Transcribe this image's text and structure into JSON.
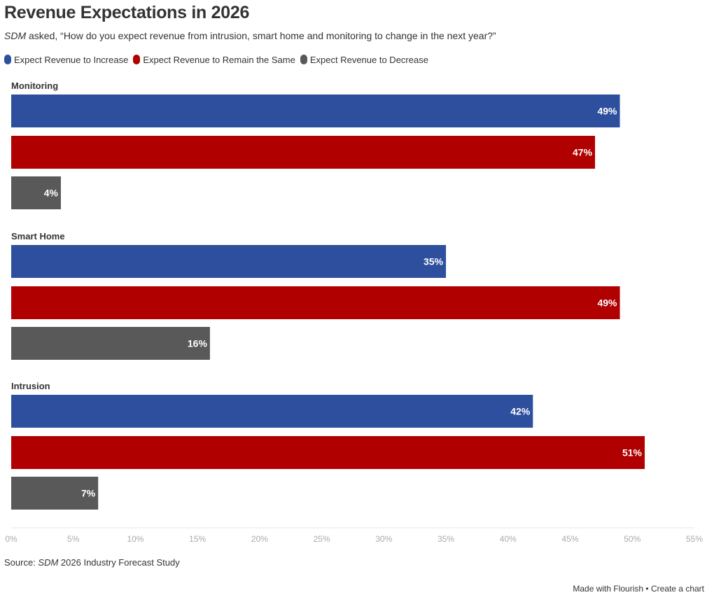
{
  "chart_data": {
    "type": "bar",
    "orientation": "horizontal",
    "title": "Revenue Expectations in 2026",
    "subtitle": {
      "italic_prefix": "SDM",
      "text": " asked, “How do you expect revenue from intrusion, smart home and monitoring to change in the next year?”"
    },
    "categories": [
      "Monitoring",
      "Smart Home",
      "Intrusion"
    ],
    "series": [
      {
        "name": "Expect Revenue to Increase",
        "color": "#2e4f9e",
        "values": [
          49,
          35,
          42
        ]
      },
      {
        "name": "Expect Revenue to Remain the Same",
        "color": "#b00000",
        "values": [
          47,
          49,
          51
        ]
      },
      {
        "name": "Expect Revenue to Decrease",
        "color": "#595959",
        "values": [
          4,
          16,
          7
        ]
      }
    ],
    "value_suffix": "%",
    "xlim": [
      0,
      55
    ],
    "x_ticks": [
      "0%",
      "5%",
      "10%",
      "15%",
      "20%",
      "25%",
      "30%",
      "35%",
      "40%",
      "45%",
      "50%",
      "55%"
    ],
    "legend_position": "top-left",
    "grid": false
  },
  "source": {
    "prefix": "Source: ",
    "italic": "SDM",
    "suffix": " 2026 Industry Forecast Study"
  },
  "footer": {
    "made_with": "Made with Flourish",
    "separator": " • ",
    "create": "Create a chart"
  }
}
